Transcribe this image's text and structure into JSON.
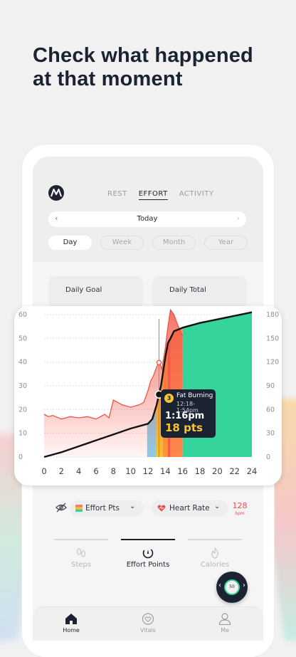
{
  "headline": {
    "line1": "Check what happened",
    "line2": "at that moment"
  },
  "top_tabs": [
    {
      "label": "REST",
      "active": false
    },
    {
      "label": "EFFORT",
      "active": true
    },
    {
      "label": "ACTIVITY",
      "active": false
    }
  ],
  "date_nav": {
    "label": "Today",
    "prev": "‹",
    "next": "›"
  },
  "ranges": [
    {
      "label": "Day",
      "active": true
    },
    {
      "label": "Week",
      "active": false
    },
    {
      "label": "Month",
      "active": false
    },
    {
      "label": "Year",
      "active": false
    }
  ],
  "stats": {
    "daily_goal": "Daily Goal",
    "daily_total": "Daily Total"
  },
  "chart_data": {
    "type": "area",
    "x_ticks": [
      "0",
      "2",
      "4",
      "6",
      "8",
      "10",
      "12",
      "14",
      "16",
      "18",
      "20",
      "22",
      "24"
    ],
    "xlim": [
      0,
      24
    ],
    "left_axis": {
      "ticks": [
        "0",
        "10",
        "20",
        "30",
        "40",
        "50",
        "60"
      ],
      "range": [
        0,
        60
      ]
    },
    "right_axis": {
      "ticks": [
        "0",
        "30",
        "60",
        "90",
        "120",
        "150",
        "180"
      ],
      "range": [
        0,
        180
      ]
    },
    "grid": true,
    "heart_rate_series": {
      "x": [
        0,
        0.5,
        1,
        2,
        3,
        4,
        5,
        6,
        7,
        7.5,
        8,
        8.5,
        9,
        10,
        11,
        11.5,
        12,
        12.3,
        12.6,
        13,
        13.3,
        13.6,
        14,
        14.3,
        14.6,
        15,
        15.5,
        16
      ],
      "y": [
        18,
        17,
        17.5,
        16,
        17,
        16.5,
        17,
        16,
        18,
        16.5,
        24,
        23,
        22,
        21,
        22,
        23,
        28,
        32,
        34,
        38,
        40,
        37,
        46,
        55,
        62,
        60,
        55,
        51
      ]
    },
    "effort_line": {
      "x": [
        0,
        2,
        4,
        6,
        8,
        10,
        12,
        12.5,
        13,
        13.5,
        14,
        14.3,
        14.6,
        15,
        16,
        18,
        20,
        22,
        24
      ],
      "y": [
        0,
        2,
        4.5,
        7,
        9.5,
        12,
        14,
        16,
        22,
        30,
        42,
        48,
        50,
        53,
        54.5,
        56.5,
        58,
        59.5,
        61
      ]
    },
    "zones": [
      {
        "from": 11.9,
        "to": 12.9,
        "color": "#88cfee"
      },
      {
        "from": 12.9,
        "to": 13.7,
        "color": "#f7c530"
      },
      {
        "from": 13.7,
        "to": 14.3,
        "color": "#ff9a30"
      },
      {
        "from": 14.3,
        "to": 14.6,
        "color": "#f25c4c"
      },
      {
        "from": 14.6,
        "to": 16.0,
        "color": "#ff8a4a"
      },
      {
        "from": 16.0,
        "to": 24.0,
        "color": "#35d49b"
      }
    ],
    "cursor_x": 13.27,
    "tooltip": {
      "zone_number": "3",
      "zone_name": "Fat Burning",
      "time_range": "12:18-1:54pm",
      "time": "1:16pm",
      "points": "18 pts"
    }
  },
  "selectors": {
    "effort": {
      "label": "Effort Pts",
      "chevron": "⌄"
    },
    "heart_rate": {
      "label": "Heart Rate",
      "chevron": "⌄"
    },
    "hr_value": "128",
    "hr_unit": "bpm"
  },
  "metric_tabs": [
    {
      "label": "Steps",
      "active": false
    },
    {
      "label": "Effort Points",
      "active": true
    },
    {
      "label": "Calories",
      "active": false
    }
  ],
  "watch_fab": {
    "face_value": "50"
  },
  "bottom_nav": [
    {
      "label": "Home",
      "active": true
    },
    {
      "label": "Vitals",
      "active": false
    },
    {
      "label": "Me",
      "active": false
    }
  ],
  "colors": {
    "accent_green": "#35d49b",
    "accent_yellow": "#f7c530",
    "heart_red": "#ea4c4c",
    "dark": "#1b2232"
  }
}
